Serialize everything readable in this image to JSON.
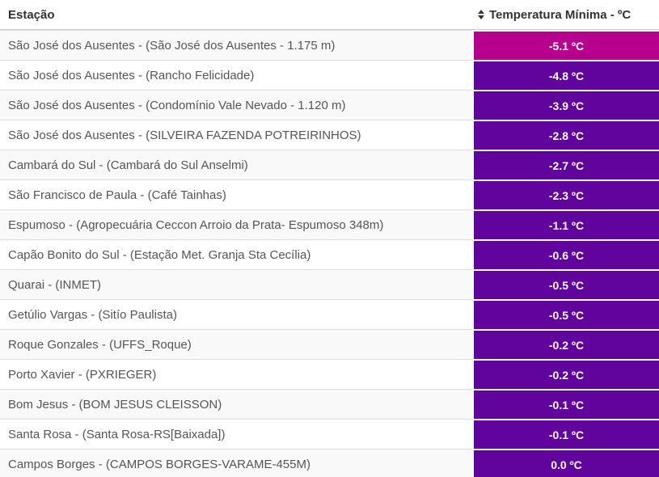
{
  "table": {
    "columns": {
      "station": {
        "label": "Estação"
      },
      "temperature": {
        "label": "Temperatura Mínima - ºC",
        "sort_icon": "up-down-arrows"
      }
    },
    "rows": [
      {
        "station": "São José dos Ausentes - (São José dos Ausentes - 1.175 m)",
        "temp": "-5.1 ºC",
        "temp_color": "#b8008f"
      },
      {
        "station": "São José dos Ausentes - (Rancho Felicidade)",
        "temp": "-4.8 ºC",
        "temp_color": "#61049e"
      },
      {
        "station": "São José dos Ausentes - (Condomínio Vale Nevado - 1.120 m)",
        "temp": "-3.9 ºC",
        "temp_color": "#61049e"
      },
      {
        "station": "São José dos Ausentes - (SILVEIRA FAZENDA POTREIRINHOS)",
        "temp": "-2.8 ºC",
        "temp_color": "#61049e"
      },
      {
        "station": "Cambará do Sul - (Cambará do Sul Anselmi)",
        "temp": "-2.7 ºC",
        "temp_color": "#61049e"
      },
      {
        "station": "São Francisco de Paula - (Café Tainhas)",
        "temp": "-2.3 ºC",
        "temp_color": "#61049e"
      },
      {
        "station": "Espumoso - (Agropecuária Ceccon Arroio da Prata- Espumoso 348m)",
        "temp": "-1.1 ºC",
        "temp_color": "#61049e"
      },
      {
        "station": "Capão Bonito do Sul - (Estação Met. Granja Sta Cecília)",
        "temp": "-0.6 ºC",
        "temp_color": "#61049e"
      },
      {
        "station": "Quarai - (INMET)",
        "temp": "-0.5 ºC",
        "temp_color": "#61049e"
      },
      {
        "station": "Getúlio Vargas - (Sitío Paulista)",
        "temp": "-0.5 ºC",
        "temp_color": "#61049e"
      },
      {
        "station": "Roque Gonzales - (UFFS_Roque)",
        "temp": "-0.2 ºC",
        "temp_color": "#61049e"
      },
      {
        "station": "Porto Xavier - (PXRIEGER)",
        "temp": "-0.2 ºC",
        "temp_color": "#61049e"
      },
      {
        "station": "Bom Jesus - (BOM JESUS CLEISSON)",
        "temp": "-0.1 ºC",
        "temp_color": "#61049e"
      },
      {
        "station": "Santa Rosa - (Santa Rosa-RS[Baixada])",
        "temp": "-0.1 ºC",
        "temp_color": "#61049e"
      },
      {
        "station": "Campos Borges - (CAMPOS BORGES-VARAME-455M)",
        "temp": "0.0 ºC",
        "temp_color": "#61049e"
      }
    ]
  },
  "colors": {
    "magenta_cell": "#b8008f",
    "purple_cell": "#61049e",
    "header_text": "#333333",
    "station_text": "#555555",
    "stripe_bg": "#f9f9f9",
    "row_border": "#dddddd"
  }
}
